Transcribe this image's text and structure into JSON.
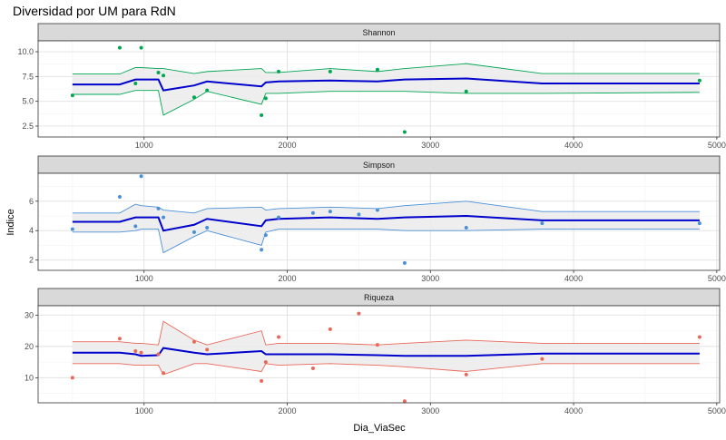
{
  "chart_data": {
    "type": "scatter",
    "title": "Diversidad por UM para RdN",
    "xlabel": "Dia_ViaSec",
    "ylabel": "Indice",
    "xlim": [
      260,
      5020
    ],
    "x_ticks": [
      1000,
      2000,
      3000,
      4000,
      5000
    ],
    "x_tick_labels": [
      "1000",
      "2000",
      "3000",
      "4000",
      "5000"
    ],
    "grid": true,
    "legend": "none",
    "band_fill": "#ebebeb",
    "fit_line_color": "#0000cc",
    "panels": [
      {
        "name": "Shannon",
        "color": "#00a650",
        "ylim": [
          1.4,
          11.1
        ],
        "y_ticks": [
          2.5,
          5.0,
          7.5,
          10.0
        ],
        "y_tick_labels": [
          "2.5",
          "5.0",
          "7.5",
          "10.0"
        ],
        "points": [
          {
            "x": 500,
            "y": 5.6
          },
          {
            "x": 830,
            "y": 10.4
          },
          {
            "x": 940,
            "y": 6.8
          },
          {
            "x": 980,
            "y": 10.4
          },
          {
            "x": 1100,
            "y": 7.9
          },
          {
            "x": 1135,
            "y": 7.6
          },
          {
            "x": 1350,
            "y": 5.4
          },
          {
            "x": 1440,
            "y": 6.1
          },
          {
            "x": 1820,
            "y": 3.6
          },
          {
            "x": 1850,
            "y": 5.3
          },
          {
            "x": 1940,
            "y": 8.0
          },
          {
            "x": 2300,
            "y": 8.0
          },
          {
            "x": 2630,
            "y": 8.2
          },
          {
            "x": 2820,
            "y": 1.9
          },
          {
            "x": 3250,
            "y": 6.0
          },
          {
            "x": 4880,
            "y": 7.1
          }
        ],
        "fit": [
          {
            "x": 500,
            "y": 6.7,
            "lo": 5.7,
            "hi": 7.75
          },
          {
            "x": 830,
            "y": 6.7,
            "lo": 5.7,
            "hi": 7.75
          },
          {
            "x": 940,
            "y": 7.2,
            "lo": 6.1,
            "hi": 8.4
          },
          {
            "x": 980,
            "y": 7.2,
            "lo": 6.1,
            "hi": 8.4
          },
          {
            "x": 1100,
            "y": 7.2,
            "lo": 6.1,
            "hi": 8.3
          },
          {
            "x": 1135,
            "y": 6.1,
            "lo": 3.6,
            "hi": 8.3
          },
          {
            "x": 1350,
            "y": 6.6,
            "lo": 5.2,
            "hi": 7.8
          },
          {
            "x": 1440,
            "y": 7.0,
            "lo": 6.0,
            "hi": 8.0
          },
          {
            "x": 1820,
            "y": 6.5,
            "lo": 4.7,
            "hi": 8.3
          },
          {
            "x": 1850,
            "y": 6.9,
            "lo": 5.8,
            "hi": 7.9
          },
          {
            "x": 1940,
            "y": 7.0,
            "lo": 5.8,
            "hi": 7.9
          },
          {
            "x": 2300,
            "y": 7.1,
            "lo": 6.0,
            "hi": 8.3
          },
          {
            "x": 2630,
            "y": 7.0,
            "lo": 6.0,
            "hi": 8.0
          },
          {
            "x": 2820,
            "y": 7.2,
            "lo": 6.0,
            "hi": 8.3
          },
          {
            "x": 3250,
            "y": 7.3,
            "lo": 5.8,
            "hi": 8.8
          },
          {
            "x": 3780,
            "y": 6.8,
            "lo": 5.8,
            "hi": 7.8
          },
          {
            "x": 4880,
            "y": 6.8,
            "lo": 5.9,
            "hi": 7.8
          }
        ]
      },
      {
        "name": "Simpson",
        "color": "#4a90d9",
        "ylim": [
          1.3,
          7.9
        ],
        "y_ticks": [
          2,
          4,
          6
        ],
        "y_tick_labels": [
          "2",
          "4",
          "6"
        ],
        "points": [
          {
            "x": 500,
            "y": 4.1
          },
          {
            "x": 830,
            "y": 6.3
          },
          {
            "x": 940,
            "y": 4.3
          },
          {
            "x": 980,
            "y": 7.7
          },
          {
            "x": 1100,
            "y": 5.5
          },
          {
            "x": 1135,
            "y": 4.9
          },
          {
            "x": 1350,
            "y": 3.9
          },
          {
            "x": 1440,
            "y": 4.2
          },
          {
            "x": 1820,
            "y": 2.7
          },
          {
            "x": 1850,
            "y": 3.7
          },
          {
            "x": 1940,
            "y": 4.9
          },
          {
            "x": 2180,
            "y": 5.2
          },
          {
            "x": 2300,
            "y": 5.3
          },
          {
            "x": 2500,
            "y": 5.1
          },
          {
            "x": 2630,
            "y": 5.4
          },
          {
            "x": 2820,
            "y": 1.8
          },
          {
            "x": 3250,
            "y": 4.2
          },
          {
            "x": 3780,
            "y": 4.5
          },
          {
            "x": 4880,
            "y": 4.5
          }
        ],
        "fit": [
          {
            "x": 500,
            "y": 4.6,
            "lo": 3.9,
            "hi": 5.2
          },
          {
            "x": 830,
            "y": 4.6,
            "lo": 3.9,
            "hi": 5.2
          },
          {
            "x": 940,
            "y": 4.9,
            "lo": 4.0,
            "hi": 5.8
          },
          {
            "x": 980,
            "y": 4.9,
            "lo": 4.1,
            "hi": 5.7
          },
          {
            "x": 1100,
            "y": 4.9,
            "lo": 4.1,
            "hi": 5.6
          },
          {
            "x": 1135,
            "y": 4.0,
            "lo": 2.5,
            "hi": 5.4
          },
          {
            "x": 1350,
            "y": 4.4,
            "lo": 3.6,
            "hi": 5.2
          },
          {
            "x": 1440,
            "y": 4.8,
            "lo": 4.0,
            "hi": 5.5
          },
          {
            "x": 1820,
            "y": 4.3,
            "lo": 3.0,
            "hi": 5.6
          },
          {
            "x": 1850,
            "y": 4.7,
            "lo": 3.9,
            "hi": 5.4
          },
          {
            "x": 1940,
            "y": 4.8,
            "lo": 4.1,
            "hi": 5.5
          },
          {
            "x": 2300,
            "y": 4.9,
            "lo": 4.1,
            "hi": 5.6
          },
          {
            "x": 2630,
            "y": 4.8,
            "lo": 4.1,
            "hi": 5.5
          },
          {
            "x": 2820,
            "y": 4.9,
            "lo": 4.0,
            "hi": 5.7
          },
          {
            "x": 3250,
            "y": 5.0,
            "lo": 4.0,
            "hi": 6.0
          },
          {
            "x": 3780,
            "y": 4.7,
            "lo": 4.1,
            "hi": 5.3
          },
          {
            "x": 4880,
            "y": 4.7,
            "lo": 4.1,
            "hi": 5.3
          }
        ]
      },
      {
        "name": "Riqueza",
        "color": "#e8685a",
        "ylim": [
          2,
          33
        ],
        "y_ticks": [
          10,
          20,
          30
        ],
        "y_tick_labels": [
          "10",
          "20",
          "30"
        ],
        "points": [
          {
            "x": 500,
            "y": 10.0
          },
          {
            "x": 830,
            "y": 22.5
          },
          {
            "x": 940,
            "y": 18.5
          },
          {
            "x": 980,
            "y": 18.0
          },
          {
            "x": 1100,
            "y": 17.5
          },
          {
            "x": 1135,
            "y": 11.5
          },
          {
            "x": 1350,
            "y": 21.5
          },
          {
            "x": 1440,
            "y": 19.0
          },
          {
            "x": 1820,
            "y": 9.0
          },
          {
            "x": 1850,
            "y": 15.0
          },
          {
            "x": 1940,
            "y": 23.0
          },
          {
            "x": 2180,
            "y": 13.0
          },
          {
            "x": 2300,
            "y": 25.5
          },
          {
            "x": 2500,
            "y": 30.5
          },
          {
            "x": 2630,
            "y": 20.5
          },
          {
            "x": 2820,
            "y": 2.5
          },
          {
            "x": 3250,
            "y": 11.0
          },
          {
            "x": 3780,
            "y": 16.0
          },
          {
            "x": 4880,
            "y": 23.0
          }
        ],
        "fit": [
          {
            "x": 500,
            "y": 18.0,
            "lo": 14.5,
            "hi": 21.5
          },
          {
            "x": 830,
            "y": 18.0,
            "lo": 14.5,
            "hi": 21.5
          },
          {
            "x": 940,
            "y": 17.5,
            "lo": 14.0,
            "hi": 21.0
          },
          {
            "x": 980,
            "y": 17.0,
            "lo": 14.0,
            "hi": 21.0
          },
          {
            "x": 1100,
            "y": 17.2,
            "lo": 14.0,
            "hi": 20.5
          },
          {
            "x": 1135,
            "y": 19.5,
            "lo": 11.0,
            "hi": 28.0
          },
          {
            "x": 1350,
            "y": 18.0,
            "lo": 14.5,
            "hi": 22.0
          },
          {
            "x": 1440,
            "y": 17.5,
            "lo": 14.5,
            "hi": 20.5
          },
          {
            "x": 1820,
            "y": 18.5,
            "lo": 12.0,
            "hi": 25.0
          },
          {
            "x": 1850,
            "y": 17.5,
            "lo": 14.5,
            "hi": 20.5
          },
          {
            "x": 1940,
            "y": 17.5,
            "lo": 14.0,
            "hi": 21.0
          },
          {
            "x": 2300,
            "y": 17.5,
            "lo": 14.5,
            "hi": 21.0
          },
          {
            "x": 2630,
            "y": 17.2,
            "lo": 14.0,
            "hi": 20.5
          },
          {
            "x": 2820,
            "y": 17.0,
            "lo": 13.5,
            "hi": 21.0
          },
          {
            "x": 3250,
            "y": 17.0,
            "lo": 12.0,
            "hi": 22.0
          },
          {
            "x": 3780,
            "y": 17.7,
            "lo": 14.5,
            "hi": 21.0
          },
          {
            "x": 4880,
            "y": 17.7,
            "lo": 14.5,
            "hi": 21.0
          }
        ]
      }
    ]
  }
}
